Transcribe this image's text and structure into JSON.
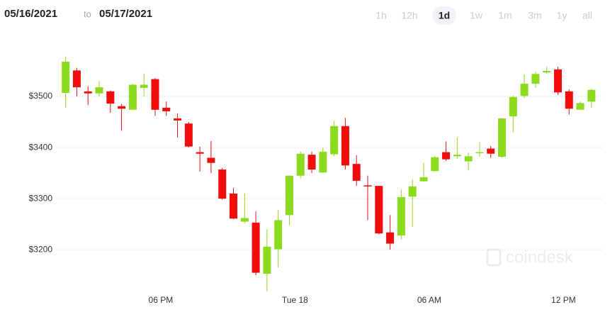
{
  "date_range": {
    "from": "05/16/2021",
    "separator": "to",
    "to": "05/17/2021"
  },
  "range_buttons": [
    "1h",
    "12h",
    "1d",
    "1w",
    "1m",
    "3m",
    "1y",
    "all"
  ],
  "active_range_index": 2,
  "watermark": "coindesk",
  "chart_data": {
    "type": "candlestick",
    "up_color": "#8ddb1f",
    "down_color": "#f20d0d",
    "grid": true,
    "xlim": [
      13.35,
      37.73
    ],
    "ylim": [
      3110,
      3600
    ],
    "xticks": [
      {
        "value": 18,
        "label": "06 PM"
      },
      {
        "value": 24,
        "label": "Tue 18"
      },
      {
        "value": 30,
        "label": "06 AM"
      },
      {
        "value": 36,
        "label": "12 PM"
      }
    ],
    "yticks": [
      {
        "value": 3200,
        "label": "$3200"
      },
      {
        "value": 3300,
        "label": "$3300"
      },
      {
        "value": 3400,
        "label": "$3400"
      },
      {
        "value": 3500,
        "label": "$3500"
      }
    ],
    "x": [
      13.75,
      14.25,
      14.75,
      15.25,
      15.75,
      16.25,
      16.75,
      17.25,
      17.75,
      18.25,
      18.75,
      19.25,
      19.75,
      20.25,
      20.75,
      21.25,
      21.75,
      22.25,
      22.75,
      23.25,
      23.75,
      24.25,
      24.75,
      25.25,
      25.75,
      26.25,
      26.75,
      27.25,
      27.75,
      28.25,
      28.75,
      29.25,
      29.75,
      30.25,
      30.75,
      31.25,
      31.75,
      32.25,
      32.75,
      33.25,
      33.75,
      34.25,
      34.75,
      35.25,
      35.75,
      36.25,
      36.75,
      37.25
    ],
    "open": [
      3507,
      3551,
      3510,
      3506,
      3510,
      3481,
      3474,
      3517,
      3534,
      3478,
      3457,
      3447,
      3391,
      3380,
      3357,
      3310,
      3255,
      3253,
      3153,
      3201,
      3268,
      3345,
      3386,
      3351,
      3387,
      3442,
      3368,
      3326,
      3325,
      3234,
      3228,
      3304,
      3334,
      3354,
      3391,
      3383,
      3373,
      3389,
      3398,
      3382,
      3461,
      3501,
      3525,
      3547,
      3553,
      3510,
      3474,
      3490
    ],
    "high": [
      3578,
      3556,
      3520,
      3530,
      3512,
      3485,
      3525,
      3545,
      3536,
      3490,
      3467,
      3450,
      3402,
      3413,
      3360,
      3321,
      3310,
      3275,
      3240,
      3278,
      3345,
      3392,
      3392,
      3400,
      3452,
      3458,
      3385,
      3345,
      3325,
      3268,
      3318,
      3338,
      3370,
      3384,
      3412,
      3420,
      3390,
      3411,
      3403,
      3458,
      3502,
      3543,
      3549,
      3558,
      3558,
      3514,
      3490,
      3515
    ],
    "low": [
      3478,
      3500,
      3483,
      3500,
      3468,
      3433,
      3474,
      3500,
      3462,
      3462,
      3420,
      3400,
      3353,
      3350,
      3298,
      3260,
      3252,
      3150,
      3118,
      3165,
      3248,
      3340,
      3350,
      3351,
      3383,
      3357,
      3325,
      3258,
      3230,
      3200,
      3220,
      3245,
      3333,
      3353,
      3374,
      3378,
      3355,
      3382,
      3380,
      3380,
      3430,
      3497,
      3517,
      3545,
      3503,
      3465,
      3474,
      3478
    ],
    "close": [
      3568,
      3518,
      3506,
      3518,
      3486,
      3476,
      3523,
      3523,
      3474,
      3471,
      3453,
      3402,
      3388,
      3370,
      3300,
      3261,
      3262,
      3155,
      3206,
      3258,
      3345,
      3388,
      3357,
      3392,
      3442,
      3365,
      3335,
      3324,
      3232,
      3212,
      3303,
      3324,
      3342,
      3381,
      3377,
      3386,
      3383,
      3391,
      3388,
      3457,
      3499,
      3525,
      3544,
      3550,
      3508,
      3476,
      3487,
      3513
    ]
  }
}
